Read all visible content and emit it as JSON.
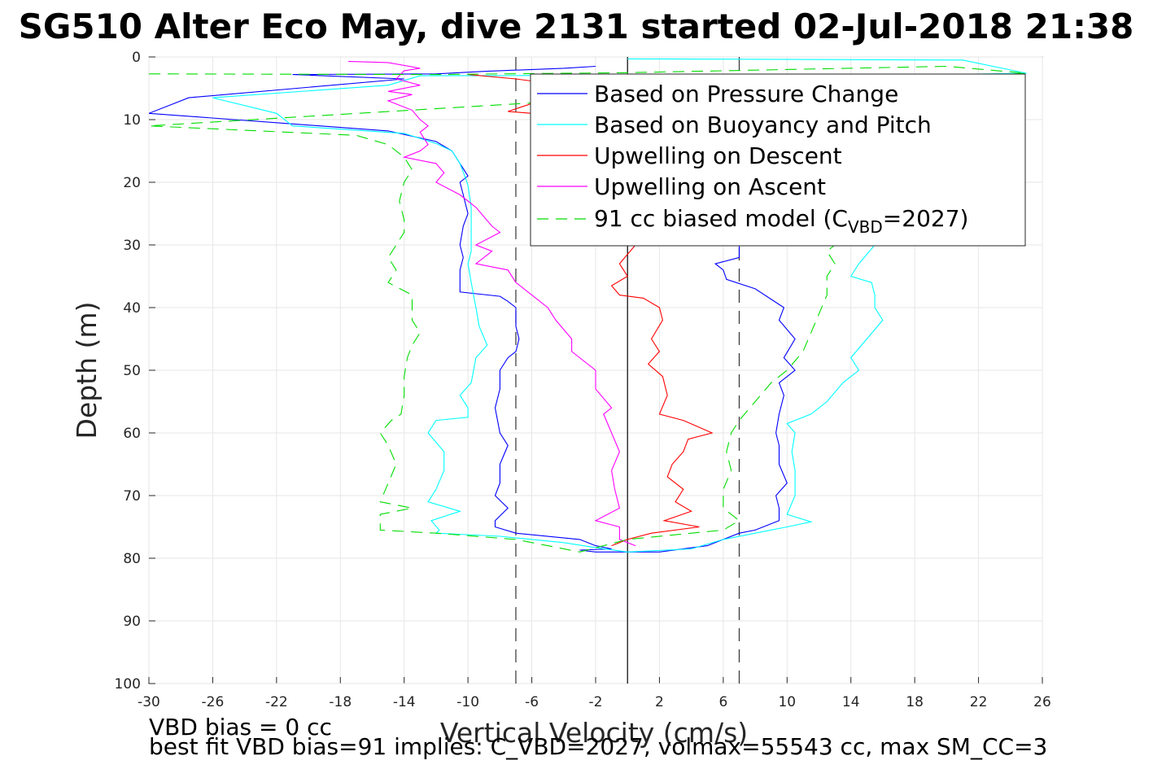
{
  "chart_data": {
    "type": "line",
    "title": "SG510 Alter Eco May, dive 2131 started 02-Jul-2018 21:38",
    "xlabel": "Vertical Velocity (cm/s)",
    "ylabel": "Depth (m)",
    "xlim": [
      -30,
      26
    ],
    "ylim": [
      0,
      100
    ],
    "y_reversed": true,
    "grid": true,
    "xticks": [
      -30,
      -26,
      -22,
      -18,
      -14,
      -10,
      -6,
      -2,
      2,
      6,
      10,
      14,
      18,
      22,
      26
    ],
    "yticks": [
      0,
      10,
      20,
      30,
      40,
      50,
      60,
      70,
      80,
      90,
      100
    ],
    "legend_position": "top-right",
    "notes": [
      "VBD bias = 0 cc",
      "best fit VBD bias=91 implies: C_VBD=2027, volmax=55543 cc, max SM_CC=3"
    ],
    "reference_lines": [
      {
        "x": 0,
        "style": "solid",
        "color": "#000000"
      },
      {
        "x": -7,
        "style": "dashed",
        "color": "#333333"
      },
      {
        "x": 7,
        "style": "dashed",
        "color": "#333333"
      }
    ],
    "legend": [
      {
        "label": "Based on Pressure Change",
        "color": "#0000ff",
        "dash": false
      },
      {
        "label": "Based on Buoyancy and Pitch",
        "color": "#00ffff",
        "dash": false
      },
      {
        "label": "Upwelling on Descent",
        "color": "#ff0000",
        "dash": false
      },
      {
        "label": "Upwelling on Ascent",
        "color": "#ff00ff",
        "dash": false
      },
      {
        "label": "91 cc biased model (C",
        "sub": "VBD",
        "suffix": "=2027)",
        "color": "#00dd00",
        "dash": true
      }
    ],
    "series": [
      {
        "name": "Based on Pressure Change",
        "color": "#0000ff",
        "points": [
          [
            -2,
            1.5
          ],
          [
            -4,
            1.8
          ],
          [
            -9,
            2.3
          ],
          [
            -12,
            2.7
          ],
          [
            -21,
            2.8
          ],
          [
            -14,
            3.5
          ],
          [
            -27.5,
            6.5
          ],
          [
            -30,
            9
          ],
          [
            -22,
            10.5
          ],
          [
            -15,
            11.8
          ],
          [
            -12,
            13.5
          ],
          [
            -11,
            15
          ],
          [
            -10.5,
            17
          ],
          [
            -10,
            19
          ],
          [
            -10.5,
            20
          ],
          [
            -10.3,
            22
          ],
          [
            -10,
            25
          ],
          [
            -10.3,
            27
          ],
          [
            -10.5,
            30
          ],
          [
            -10.3,
            32
          ],
          [
            -10.5,
            34
          ],
          [
            -10.5,
            36
          ],
          [
            -10.5,
            37.5
          ],
          [
            -8,
            38.2
          ],
          [
            -7.5,
            39
          ],
          [
            -7,
            40
          ],
          [
            -7,
            43
          ],
          [
            -6.8,
            45
          ],
          [
            -7,
            47
          ],
          [
            -7.5,
            48
          ],
          [
            -8,
            50
          ],
          [
            -8,
            53
          ],
          [
            -8.3,
            56
          ],
          [
            -8,
            60
          ],
          [
            -7.5,
            62
          ],
          [
            -8,
            65
          ],
          [
            -8,
            68
          ],
          [
            -8.3,
            70
          ],
          [
            -7.5,
            72
          ],
          [
            -8.3,
            74
          ],
          [
            -8.3,
            75
          ],
          [
            -7,
            76
          ],
          [
            -3,
            77
          ],
          [
            -2,
            78
          ],
          [
            -1,
            78.5
          ],
          [
            -3,
            78.7
          ],
          [
            -2,
            79
          ],
          [
            2,
            79
          ],
          [
            5,
            78
          ],
          [
            6,
            77
          ],
          [
            7,
            76
          ],
          [
            8,
            75.5
          ],
          [
            9.5,
            74
          ],
          [
            9.5,
            72
          ],
          [
            9.3,
            70
          ],
          [
            10,
            68
          ],
          [
            9.5,
            65
          ],
          [
            9.5,
            62
          ],
          [
            9.3,
            60
          ],
          [
            9.5,
            57
          ],
          [
            9.8,
            54
          ],
          [
            9.5,
            52
          ],
          [
            10.5,
            50
          ],
          [
            9.8,
            48
          ],
          [
            10.5,
            45
          ],
          [
            9.5,
            42
          ],
          [
            9.8,
            40
          ],
          [
            8,
            37
          ],
          [
            6.2,
            35.5
          ],
          [
            6,
            34
          ],
          [
            5.5,
            33
          ],
          [
            7,
            32
          ],
          [
            7,
            30
          ]
        ]
      },
      {
        "name": "Based on Buoyancy and Pitch",
        "color": "#00ffff",
        "points": [
          [
            0,
            0.3
          ],
          [
            21,
            0.5
          ],
          [
            25,
            2.6
          ],
          [
            20,
            2.8
          ],
          [
            -13,
            3
          ],
          [
            -15,
            4.5
          ],
          [
            -26,
            6.5
          ],
          [
            -22,
            9
          ],
          [
            -21,
            11
          ],
          [
            -14,
            12.2
          ],
          [
            -12,
            13.8
          ],
          [
            -11,
            15
          ],
          [
            -10.5,
            17
          ],
          [
            -10.2,
            19
          ],
          [
            -10,
            20.5
          ],
          [
            -9.8,
            24
          ],
          [
            -9.8,
            28
          ],
          [
            -9.8,
            31
          ],
          [
            -10,
            33
          ],
          [
            -9.8,
            36
          ],
          [
            -9.5,
            40
          ],
          [
            -9.3,
            43
          ],
          [
            -8.8,
            46
          ],
          [
            -9.5,
            48
          ],
          [
            -9.8,
            52
          ],
          [
            -10.5,
            54
          ],
          [
            -10,
            56
          ],
          [
            -10,
            57.5
          ],
          [
            -12,
            58
          ],
          [
            -12.5,
            60
          ],
          [
            -11.5,
            63
          ],
          [
            -11.5,
            66
          ],
          [
            -12,
            69
          ],
          [
            -12.5,
            71
          ],
          [
            -10.5,
            72.5
          ],
          [
            -12.3,
            74
          ],
          [
            -11.8,
            75.5
          ],
          [
            -12,
            76
          ],
          [
            -8,
            76.5
          ],
          [
            -4,
            77.5
          ],
          [
            -2,
            78.3
          ],
          [
            0,
            79
          ],
          [
            4,
            78.5
          ],
          [
            6,
            77
          ],
          [
            8,
            76
          ],
          [
            10,
            75
          ],
          [
            11.5,
            74.2
          ],
          [
            10,
            73
          ],
          [
            10.5,
            70
          ],
          [
            10.5,
            66
          ],
          [
            10.3,
            63
          ],
          [
            10.5,
            60
          ],
          [
            10,
            58.5
          ],
          [
            11.5,
            57
          ],
          [
            12.5,
            55
          ],
          [
            13.5,
            52
          ],
          [
            14.5,
            50
          ],
          [
            14,
            48
          ],
          [
            15,
            45
          ],
          [
            16,
            42
          ],
          [
            15.5,
            40
          ],
          [
            15.5,
            38
          ],
          [
            15.3,
            36
          ],
          [
            14,
            35
          ],
          [
            14.5,
            33
          ],
          [
            15.5,
            30
          ]
        ]
      },
      {
        "name": "Upwelling on Descent",
        "color": "#ff0000",
        "points": [
          [
            -10,
            2.8
          ],
          [
            -7,
            3.5
          ],
          [
            -4,
            4.5
          ],
          [
            -6,
            6
          ],
          [
            -5.5,
            7
          ],
          [
            -7.5,
            8.7
          ],
          [
            -6,
            9
          ],
          [
            0.5,
            30
          ],
          [
            -0.5,
            33
          ],
          [
            0,
            35
          ],
          [
            -1,
            36.5
          ],
          [
            -0.5,
            38
          ],
          [
            1,
            38.5
          ],
          [
            2,
            40
          ],
          [
            2.2,
            42
          ],
          [
            1.5,
            45
          ],
          [
            2,
            47
          ],
          [
            1.3,
            49
          ],
          [
            2.2,
            51
          ],
          [
            2.5,
            54
          ],
          [
            2,
            57
          ],
          [
            3.5,
            58
          ],
          [
            5.3,
            60
          ],
          [
            3.8,
            61
          ],
          [
            3.5,
            63
          ],
          [
            2.8,
            65
          ],
          [
            2.5,
            67
          ],
          [
            3.5,
            69
          ],
          [
            3,
            71
          ],
          [
            4,
            72.5
          ],
          [
            2.3,
            74
          ],
          [
            4.5,
            75
          ],
          [
            1.5,
            76
          ],
          [
            0,
            77
          ],
          [
            -1,
            78
          ]
        ]
      },
      {
        "name": "Upwelling on Ascent",
        "color": "#ff00ff",
        "points": [
          [
            -17.5,
            0.7
          ],
          [
            -15,
            0.9
          ],
          [
            -13,
            1.8
          ],
          [
            -14,
            2.2
          ],
          [
            -14.5,
            3.5
          ],
          [
            -13,
            4.5
          ],
          [
            -15,
            5.5
          ],
          [
            -13.5,
            6
          ],
          [
            -15,
            7
          ],
          [
            -13.5,
            8.5
          ],
          [
            -13,
            10
          ],
          [
            -12.5,
            11
          ],
          [
            -13,
            12
          ],
          [
            -12.5,
            14
          ],
          [
            -13,
            15
          ],
          [
            -14,
            16
          ],
          [
            -12,
            17
          ],
          [
            -11.5,
            18.5
          ],
          [
            -12,
            20
          ],
          [
            -10.5,
            22
          ],
          [
            -9.5,
            24
          ],
          [
            -8.5,
            27
          ],
          [
            -8,
            28
          ],
          [
            -9.5,
            30
          ],
          [
            -8.5,
            31
          ],
          [
            -9.5,
            33
          ],
          [
            -7.5,
            34
          ],
          [
            -7,
            36
          ],
          [
            -6,
            38
          ],
          [
            -5,
            40
          ],
          [
            -4.5,
            42
          ],
          [
            -3.5,
            45
          ],
          [
            -3.5,
            47
          ],
          [
            -2,
            50
          ],
          [
            -2,
            53
          ],
          [
            -1,
            56
          ],
          [
            -1.5,
            57
          ],
          [
            -1,
            60
          ],
          [
            -0.5,
            63
          ],
          [
            -1,
            66
          ],
          [
            -0.8,
            69
          ],
          [
            -0.5,
            72
          ],
          [
            -2,
            74
          ],
          [
            -0.5,
            75
          ],
          [
            -0.5,
            77
          ],
          [
            0.5,
            78
          ]
        ]
      },
      {
        "name": "91 cc biased model (CVBD=2027)",
        "color": "#00dd00",
        "dash": true,
        "points": [
          [
            -30,
            2.7
          ],
          [
            -12,
            2.8
          ],
          [
            0,
            2.5
          ],
          [
            20,
            1.5
          ],
          [
            25,
            2.6
          ],
          [
            -30,
            11
          ],
          [
            -17,
            12.5
          ],
          [
            -15,
            14
          ],
          [
            -14,
            16
          ],
          [
            -13.5,
            18
          ],
          [
            -14,
            20
          ],
          [
            -14.3,
            23
          ],
          [
            -14,
            26
          ],
          [
            -14,
            28
          ],
          [
            -14.5,
            30
          ],
          [
            -15,
            32
          ],
          [
            -14.5,
            34
          ],
          [
            -15,
            36
          ],
          [
            -13.5,
            38
          ],
          [
            -13.5,
            40
          ],
          [
            -13.5,
            42
          ],
          [
            -13,
            44
          ],
          [
            -13.5,
            46
          ],
          [
            -13.8,
            48
          ],
          [
            -14,
            51
          ],
          [
            -14,
            54
          ],
          [
            -14.2,
            57
          ],
          [
            -14.8,
            58
          ],
          [
            -15.5,
            60
          ],
          [
            -15,
            62
          ],
          [
            -14.5,
            65
          ],
          [
            -15,
            68
          ],
          [
            -15.5,
            71
          ],
          [
            -13.5,
            72
          ],
          [
            -15.5,
            73
          ],
          [
            -15.5,
            75.5
          ],
          [
            -12,
            76
          ],
          [
            -7,
            77
          ],
          [
            -5,
            78
          ],
          [
            -3,
            79
          ],
          [
            0,
            77
          ],
          [
            4,
            76
          ],
          [
            6,
            75.5
          ],
          [
            7,
            74
          ],
          [
            6,
            72
          ],
          [
            6,
            69
          ],
          [
            6.5,
            66
          ],
          [
            6.2,
            63
          ],
          [
            6.5,
            60
          ],
          [
            7,
            58
          ],
          [
            8,
            55
          ],
          [
            9,
            52
          ],
          [
            10,
            50
          ],
          [
            11,
            47
          ],
          [
            11.5,
            44
          ],
          [
            12,
            41
          ],
          [
            12.5,
            38
          ],
          [
            12.5,
            35
          ],
          [
            13,
            33
          ],
          [
            12.5,
            31
          ],
          [
            13,
            30
          ]
        ]
      }
    ]
  }
}
